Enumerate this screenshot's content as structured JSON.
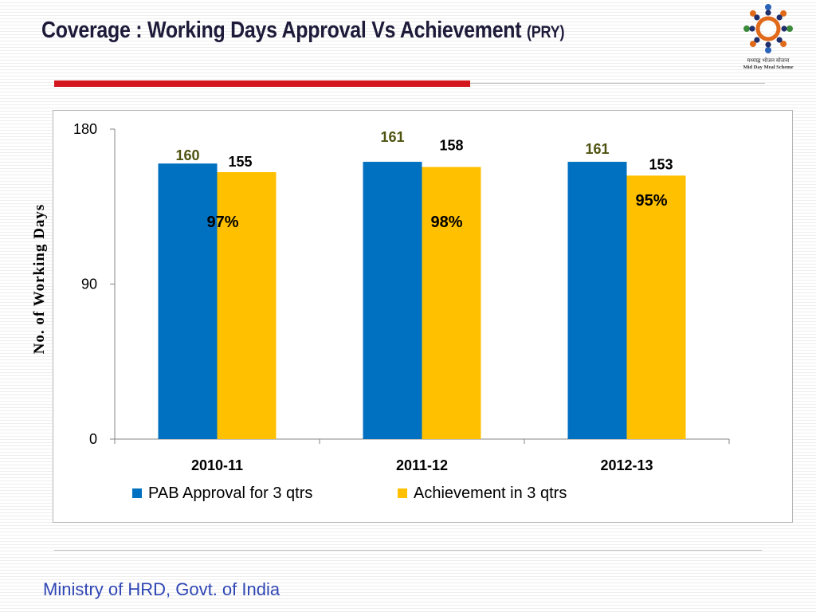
{
  "slide": {
    "title": "Coverage : Working Days Approval Vs Achievement ",
    "title_suffix": "(PRY)",
    "footer": "Ministry of HRD, Govt. of India",
    "logo": {
      "icon": "mid-day-meal-logo-icon",
      "text_line1": "मध्याह्न भोजन योजना",
      "text_line2": "Mid Day Meal Scheme"
    },
    "accent_color": "#d4161e",
    "footer_color": "#2f46b4"
  },
  "chart_data": {
    "type": "bar",
    "categories": [
      "2010-11",
      "2011-12",
      "2012-13"
    ],
    "series": [
      {
        "name": "PAB Approval for 3 qtrs",
        "values": [
          160,
          161,
          161
        ],
        "color": "#0070c0",
        "label_color": "#4f5311"
      },
      {
        "name": "Achievement in 3 qtrs",
        "values": [
          155,
          158,
          153
        ],
        "color": "#ffc000",
        "label_color": "#000000"
      }
    ],
    "percent_labels": [
      "97%",
      "98%",
      "95%"
    ],
    "ylabel": "No. of Working Days",
    "xlabel": "",
    "ylim": [
      0,
      180
    ],
    "yticks": [
      0,
      90,
      180
    ],
    "grid": false,
    "legend_position": "bottom"
  }
}
